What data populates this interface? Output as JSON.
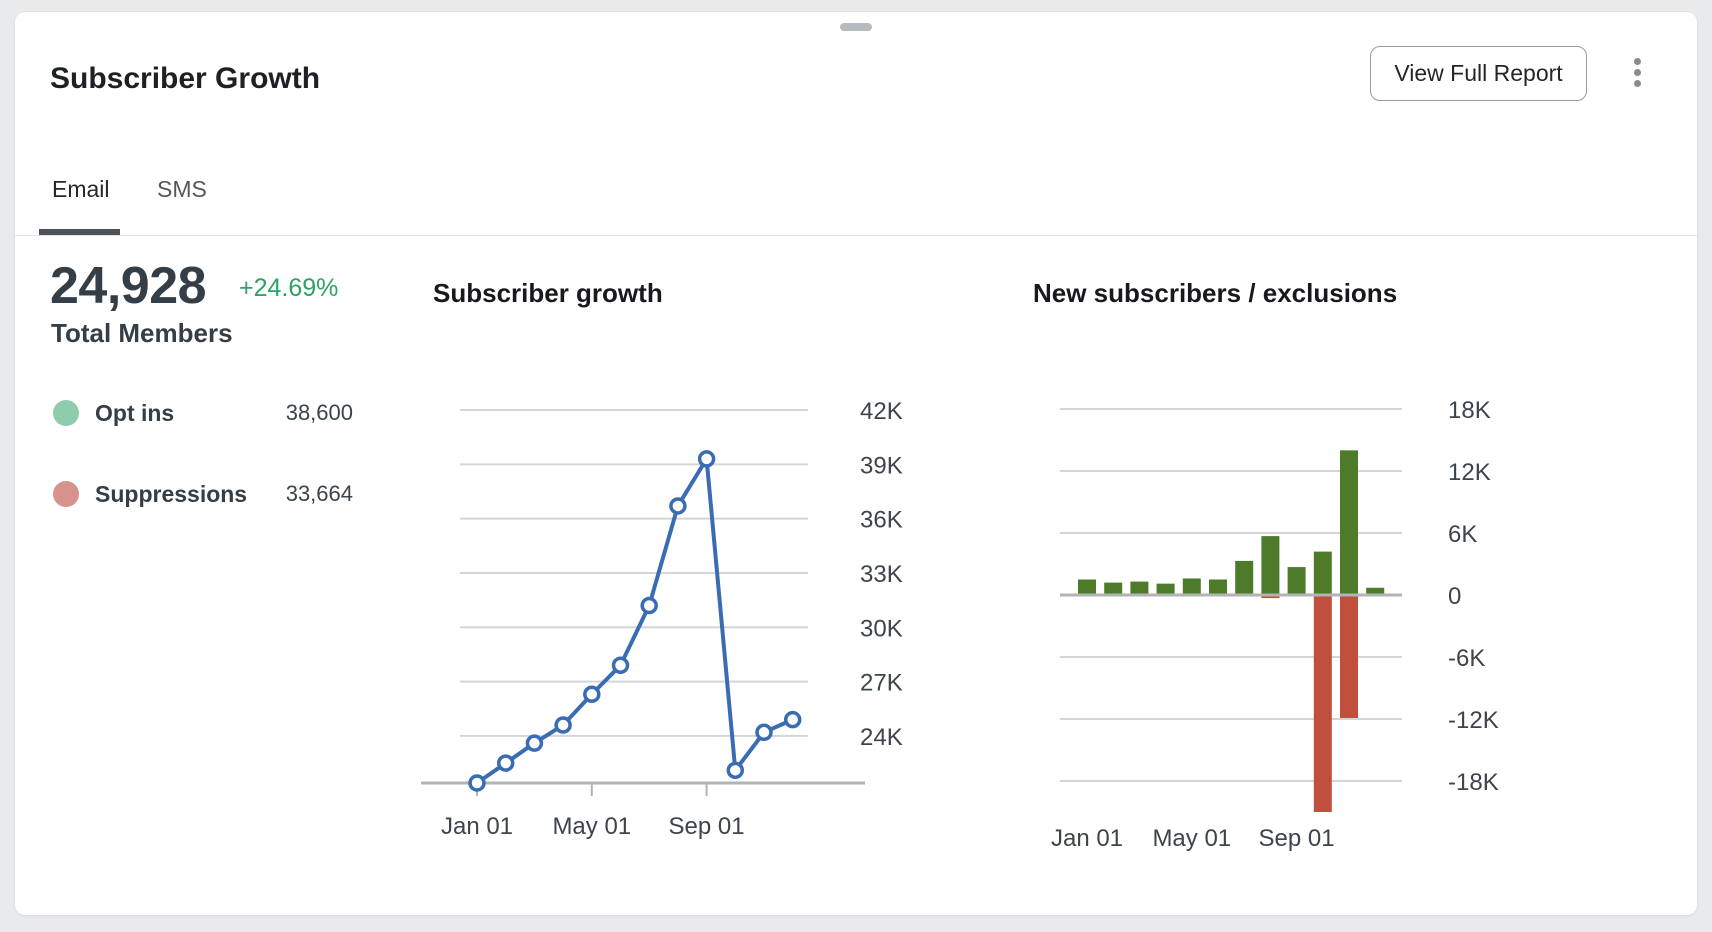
{
  "header": {
    "title": "Subscriber Growth",
    "view_report_label": "View Full Report"
  },
  "tabs": [
    {
      "label": "Email",
      "active": true
    },
    {
      "label": "SMS",
      "active": false
    }
  ],
  "stats": {
    "total": "24,928",
    "change": "+24.69%",
    "label": "Total Members"
  },
  "legend": [
    {
      "label": "Opt ins",
      "value": "38,600",
      "color": "#8fccae"
    },
    {
      "label": "Suppressions",
      "value": "33,664",
      "color": "#d6928b"
    }
  ],
  "colors": {
    "accent_green": "#2ca266",
    "grid": "#d5d5d5",
    "axis_line": "#b1b3b5",
    "axis_text": "#3e444b"
  },
  "chart_data": [
    {
      "type": "line",
      "title": "Subscriber growth",
      "x_tick_labels": [
        "Jan 01",
        "May 01",
        "Sep 01"
      ],
      "x_tick_indices": [
        0,
        4,
        8
      ],
      "values": [
        21400,
        22500,
        23600,
        24600,
        26300,
        27900,
        31200,
        36700,
        39300,
        22100,
        24200,
        24900
      ],
      "y_tick_labels": [
        "42K",
        "39K",
        "36K",
        "33K",
        "30K",
        "27K",
        "24K"
      ],
      "y_tick_values": [
        42000,
        39000,
        36000,
        33000,
        30000,
        27000,
        24000
      ],
      "ylim": [
        21400,
        43000
      ],
      "grid": "on",
      "line_color": "#3a6cb4",
      "marker": "open-circle"
    },
    {
      "type": "bar",
      "title": "New subscribers / exclusions",
      "x_tick_labels": [
        "Jan 01",
        "May 01",
        "Sep 01"
      ],
      "x_tick_indices": [
        0,
        4,
        8
      ],
      "series": [
        {
          "name": "new subscribers",
          "color": "#4e7b29",
          "values": [
            1500,
            1200,
            1300,
            1100,
            1600,
            1500,
            3300,
            5700,
            2700,
            4200,
            14000,
            700
          ]
        },
        {
          "name": "exclusions",
          "color": "#c0503d",
          "values": [
            0,
            0,
            0,
            0,
            0,
            0,
            0,
            -300,
            0,
            -21000,
            -11900,
            0
          ]
        }
      ],
      "y_tick_labels": [
        "18K",
        "12K",
        "6K",
        "0",
        "-6K",
        "-12K",
        "-18K"
      ],
      "y_tick_values": [
        18000,
        12000,
        6000,
        0,
        -6000,
        -12000,
        -18000
      ],
      "ylim": [
        -21500,
        19000
      ],
      "grid": "on"
    }
  ]
}
